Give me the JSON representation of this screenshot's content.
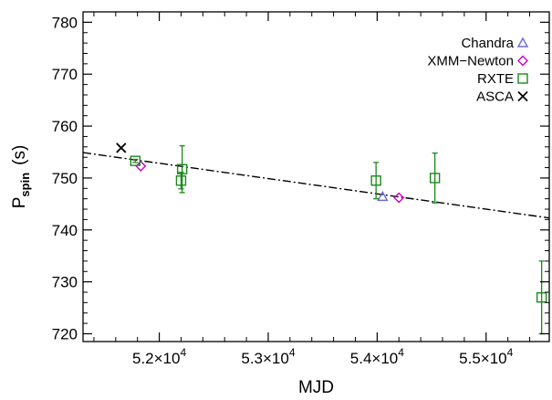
{
  "chart_data": {
    "type": "scatter",
    "xlabel": "MJD",
    "ylabel": "P",
    "ylabel_sub": "spin",
    "ylabel_unit": "(s)",
    "xlim": [
      51300,
      55580
    ],
    "ylim": [
      718.5,
      782
    ],
    "x_ticks": [
      {
        "value": 52000,
        "mantissa": "5.2×10",
        "exp": "4"
      },
      {
        "value": 53000,
        "mantissa": "5.3×10",
        "exp": "4"
      },
      {
        "value": 54000,
        "mantissa": "5.4×10",
        "exp": "4"
      },
      {
        "value": 55000,
        "mantissa": "5.5×10",
        "exp": "4"
      }
    ],
    "y_ticks": [
      720,
      730,
      740,
      750,
      760,
      770,
      780
    ],
    "legend_position": "top-right",
    "series": [
      {
        "name": "Chandra",
        "marker": "triangle",
        "color": "#6b6bd6",
        "points": [
          {
            "x": 54050,
            "y": 746.4
          }
        ]
      },
      {
        "name": "XMM−Newton",
        "marker": "diamond",
        "color": "#cc00cc",
        "points": [
          {
            "x": 51830,
            "y": 752.3
          },
          {
            "x": 54200,
            "y": 746.2
          }
        ]
      },
      {
        "name": "RXTE",
        "marker": "square",
        "color": "#1a8a1a",
        "points": [
          {
            "x": 51780,
            "y": 753.3,
            "err": 0.3
          },
          {
            "x": 52200,
            "y": 749.5,
            "err": 1.6
          },
          {
            "x": 52210,
            "y": 751.7,
            "err": 4.5
          },
          {
            "x": 53990,
            "y": 749.5,
            "err": 3.5
          },
          {
            "x": 54530,
            "y": 750.0,
            "err": 4.8
          },
          {
            "x": 55510,
            "y": 727.0,
            "err": 7.0
          }
        ]
      },
      {
        "name": "ASCA",
        "marker": "cross",
        "color": "#000000",
        "points": [
          {
            "x": 51650,
            "y": 755.8
          }
        ]
      }
    ],
    "fit_line": {
      "style": "dash-dot",
      "color": "#000000",
      "points": [
        {
          "x": 51300,
          "y": 754.9
        },
        {
          "x": 55580,
          "y": 742.3
        }
      ]
    }
  }
}
